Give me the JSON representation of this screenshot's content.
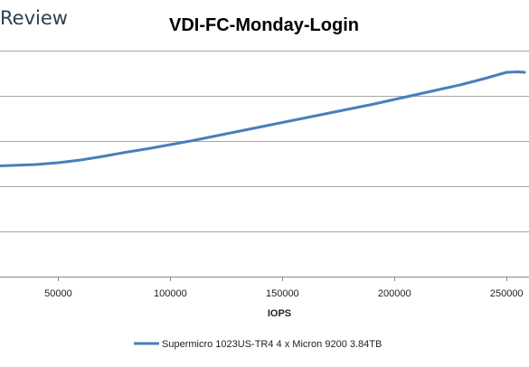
{
  "brand": {
    "label": "Review",
    "color": "#2b4050"
  },
  "colors": {
    "series": "#4a7ebb",
    "grid": "#a6a6a6",
    "axis": "#888888"
  },
  "chart_data": {
    "type": "line",
    "title": "VDI-FC-Monday-Login",
    "xlabel": "IOPS",
    "ylabel": "",
    "xlim": [
      24000,
      260000
    ],
    "xticks": [
      50000,
      100000,
      150000,
      200000,
      250000
    ],
    "xtick_labels": [
      "50000",
      "100000",
      "150000",
      "200000",
      "250000"
    ],
    "ylim": [
      0,
      5
    ],
    "yticks": [
      0,
      1,
      2,
      3,
      4,
      5
    ],
    "ytick_labels_visible": false,
    "grid": true,
    "legend_position": "bottom",
    "series": [
      {
        "name": "Supermicro 1023US-TR4 4 x Micron 9200 3.84TB",
        "color": "#4a7ebb",
        "x": [
          24000,
          40000,
          50000,
          60000,
          70000,
          80000,
          90000,
          100000,
          110000,
          120000,
          130000,
          140000,
          150000,
          160000,
          170000,
          180000,
          190000,
          200000,
          210000,
          220000,
          230000,
          240000,
          250000,
          255000,
          258000
        ],
        "y": [
          2.45,
          2.48,
          2.52,
          2.58,
          2.66,
          2.75,
          2.83,
          2.92,
          3.01,
          3.11,
          3.21,
          3.31,
          3.41,
          3.51,
          3.61,
          3.71,
          3.81,
          3.92,
          4.03,
          4.14,
          4.25,
          4.38,
          4.52,
          4.53,
          4.52
        ]
      }
    ]
  }
}
